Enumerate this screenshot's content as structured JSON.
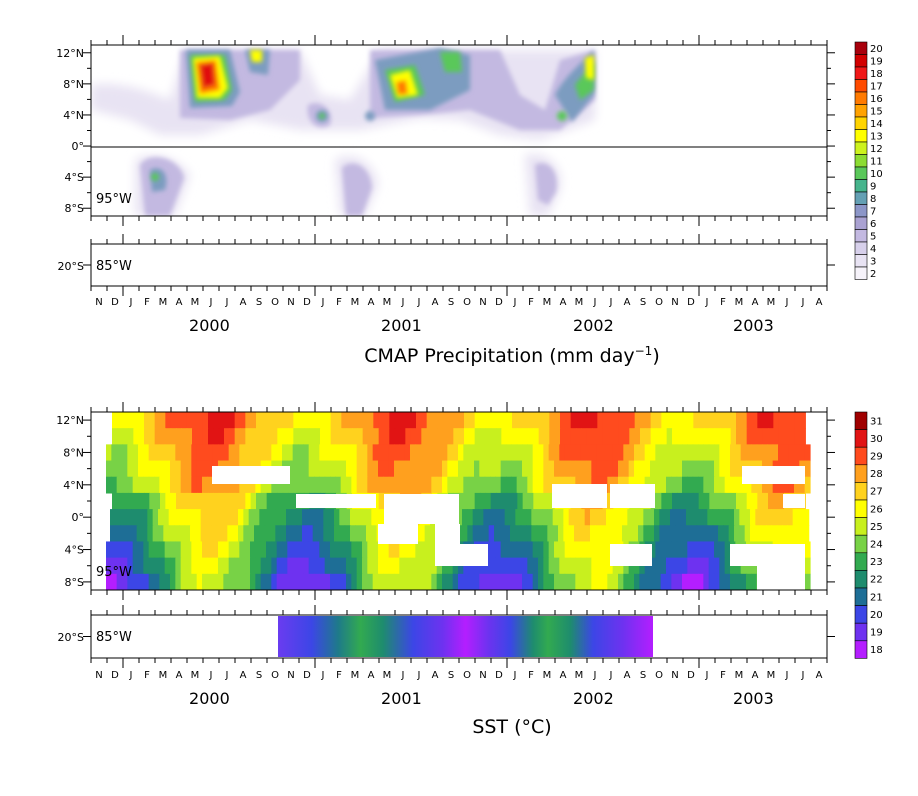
{
  "chart_data": [
    {
      "type": "heatmap",
      "title": "",
      "xlabel": "CMAP Precipitation (mm day⁻¹)",
      "ylabel": "",
      "month_labels": [
        "N",
        "D",
        "J",
        "F",
        "M",
        "A",
        "M",
        "J",
        "J",
        "A",
        "S",
        "O",
        "N",
        "D",
        "J",
        "F",
        "M",
        "A",
        "M",
        "J",
        "J",
        "A",
        "S",
        "O",
        "N",
        "D",
        "J",
        "F",
        "M",
        "A",
        "M",
        "J",
        "J",
        "A",
        "S",
        "O",
        "N",
        "D",
        "J",
        "F",
        "M",
        "A",
        "M",
        "J",
        "J",
        "A"
      ],
      "year_labels": [
        "2000",
        "2001",
        "2002",
        "2003"
      ],
      "main_panel": {
        "longitude_label": "95°W",
        "lat_tick_labels": [
          "12°N",
          "8°N",
          "4°N",
          "0°",
          "4°S",
          "8°S"
        ],
        "lat_values": [
          12,
          8,
          4,
          0,
          -4,
          -8
        ],
        "ylim": [
          -9,
          13
        ],
        "zero_line": true
      },
      "sub_panel": {
        "longitude_label": "85°W",
        "lat_tick_labels": [
          "20°S"
        ]
      },
      "colorbar": {
        "labels": [
          "20",
          "19",
          "18",
          "17",
          "16",
          "15",
          "14",
          "13",
          "12",
          "11",
          "10",
          "9",
          "8",
          "7",
          "6",
          "5",
          "4",
          "3",
          "2"
        ],
        "colors": [
          "#a8000c",
          "#d20000",
          "#f01818",
          "#ff4b00",
          "#ff7a00",
          "#ffa200",
          "#ffd400",
          "#ffff00",
          "#cdf21e",
          "#8cdc32",
          "#5ac85a",
          "#46b48c",
          "#64a0b4",
          "#8c96c8",
          "#aaa2d2",
          "#c3b9e1",
          "#d7d0eb",
          "#e8e3f3",
          "#f6f3fa"
        ],
        "range": [
          2,
          20
        ]
      }
    },
    {
      "type": "heatmap",
      "title": "",
      "xlabel": "SST (°C)",
      "ylabel": "",
      "month_labels": [
        "N",
        "D",
        "J",
        "F",
        "M",
        "A",
        "M",
        "J",
        "J",
        "A",
        "S",
        "O",
        "N",
        "D",
        "J",
        "F",
        "M",
        "A",
        "M",
        "J",
        "J",
        "A",
        "S",
        "O",
        "N",
        "D",
        "J",
        "F",
        "M",
        "A",
        "M",
        "J",
        "J",
        "A",
        "S",
        "O",
        "N",
        "D",
        "J",
        "F",
        "M",
        "A",
        "M",
        "J",
        "J",
        "A"
      ],
      "year_labels": [
        "2000",
        "2001",
        "2002",
        "2003"
      ],
      "main_panel": {
        "longitude_label": "95°W",
        "lat_tick_labels": [
          "12°N",
          "8°N",
          "4°N",
          "0°",
          "4°S",
          "8°S"
        ],
        "lat_values": [
          12,
          8,
          4,
          0,
          -4,
          -8
        ],
        "ylim": [
          -9,
          13
        ]
      },
      "sub_panel": {
        "longitude_label": "85°W",
        "lat_tick_labels": [
          "20°S"
        ],
        "note": ""
      },
      "colorbar": {
        "labels": [
          "31",
          "30",
          "29",
          "28",
          "27",
          "26",
          "25",
          "24",
          "23",
          "22",
          "21",
          "20",
          "19",
          "18"
        ],
        "colors": [
          "#a00000",
          "#e11414",
          "#ff4b1e",
          "#ffa01e",
          "#ffd21e",
          "#ffff00",
          "#c8f01e",
          "#78d246",
          "#32aa50",
          "#1e8c6e",
          "#1e6e96",
          "#3c46e6",
          "#6e32f0",
          "#b41eff"
        ],
        "range": [
          18,
          31
        ]
      }
    }
  ]
}
